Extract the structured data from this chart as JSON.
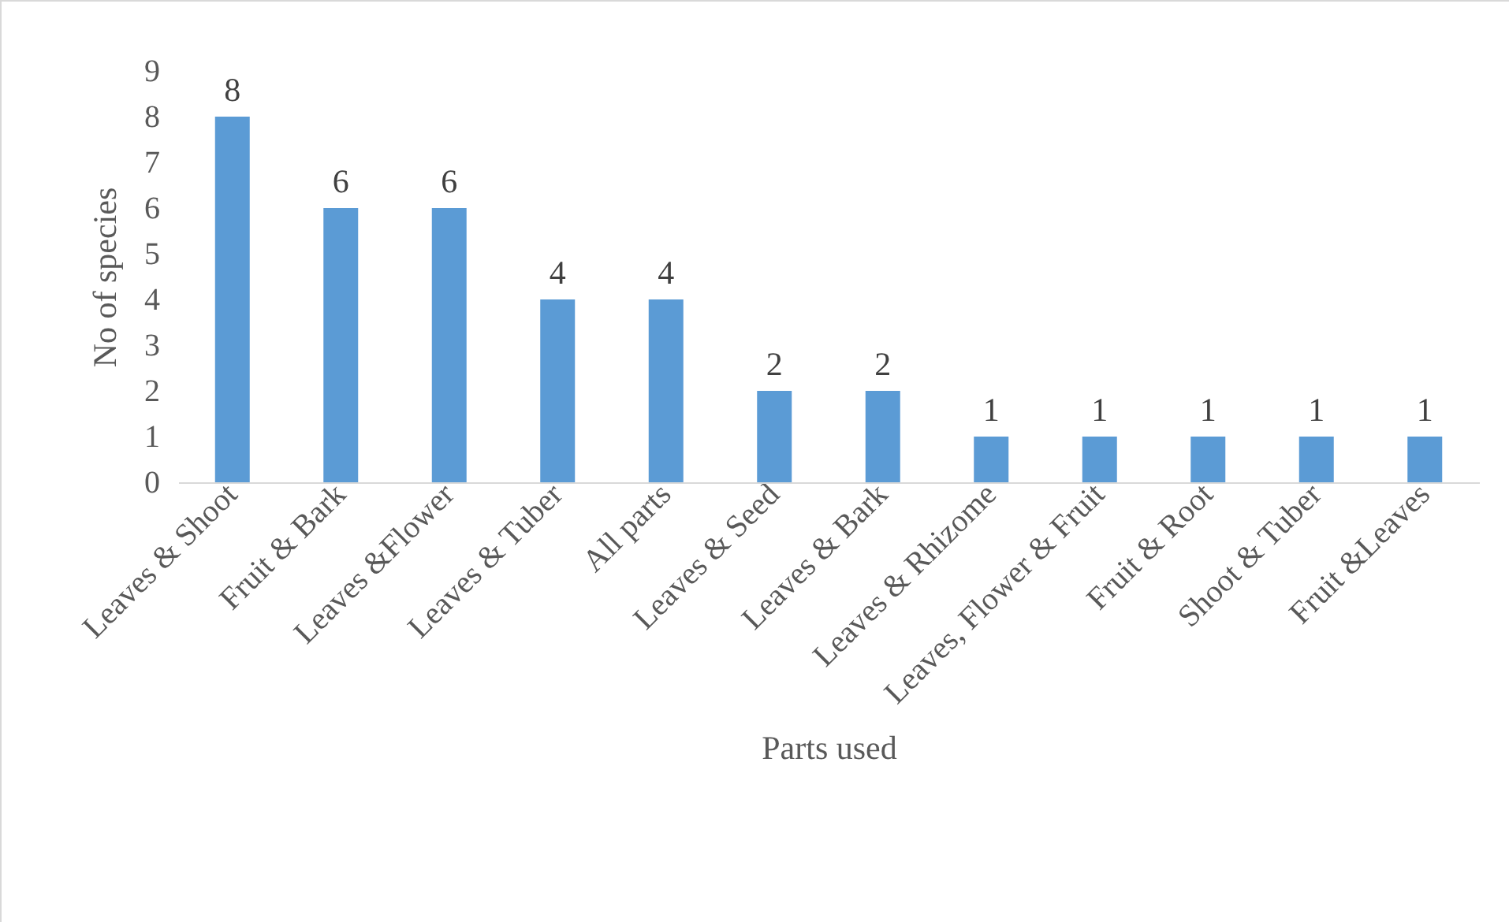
{
  "chart_data": {
    "type": "bar",
    "xlabel": "Parts used",
    "ylabel": "No of species",
    "categories": [
      "Leaves & Shoot",
      "Fruit & Bark",
      "Leaves &Flower",
      "Leaves & Tuber",
      "All parts",
      "Leaves & Seed",
      "Leaves & Bark",
      "Leaves & Rhizome",
      "Leaves, Flower & Fruit",
      "Fruit & Root",
      "Shoot & Tuber",
      "Fruit &Leaves"
    ],
    "values": [
      8,
      6,
      6,
      4,
      4,
      2,
      2,
      1,
      1,
      1,
      1,
      1
    ],
    "color": "#5b9bd5",
    "ylim": [
      0,
      9
    ],
    "yticks": [
      0,
      1,
      2,
      3,
      4,
      5,
      6,
      7,
      8,
      9
    ],
    "data_labels": true,
    "grid": false
  }
}
